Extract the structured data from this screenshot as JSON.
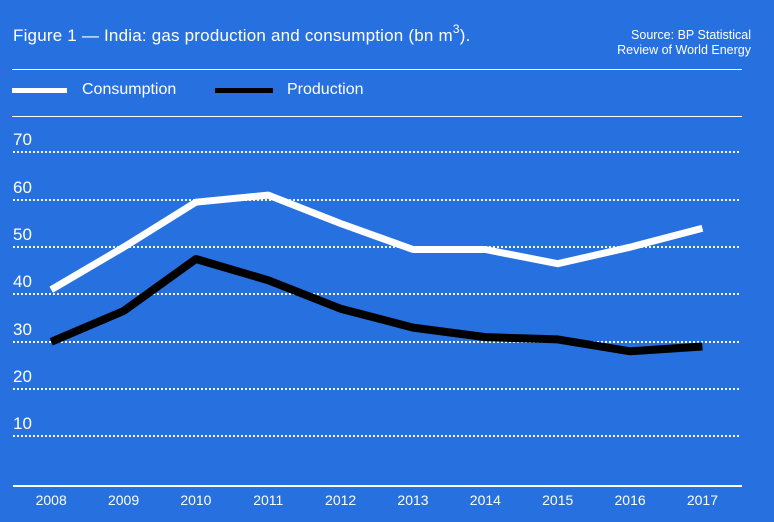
{
  "colors": {
    "background": "#2671DF",
    "text": "#FFFFFF",
    "consumption_line": "#FFFFFF",
    "production_line": "#000000"
  },
  "header": {
    "title_prefix": "Figure 1 — India: gas production and consumption (bn m",
    "title_sup": "3",
    "title_suffix": ").",
    "source_line1": "Source: BP Statistical",
    "source_line2": "Review of World Energy"
  },
  "legend": {
    "items": [
      {
        "label": "Consumption",
        "color": "#FFFFFF"
      },
      {
        "label": "Production",
        "color": "#000000"
      }
    ]
  },
  "chart_data": {
    "type": "line",
    "title": "Figure 1 — India: gas production and consumption (bn m3).",
    "source": "Source: BP Statistical Review of World Energy",
    "x": [
      2008,
      2009,
      2010,
      2011,
      2012,
      2013,
      2014,
      2015,
      2016,
      2017
    ],
    "series": [
      {
        "name": "Consumption",
        "color": "#FFFFFF",
        "values": [
          41,
          50,
          59.5,
          61,
          55,
          49.5,
          49.5,
          46.5,
          50,
          54
        ]
      },
      {
        "name": "Production",
        "color": "#000000",
        "values": [
          30,
          36.5,
          47.5,
          43,
          37,
          33,
          31,
          30.5,
          28,
          29
        ]
      }
    ],
    "ylabel": "",
    "xlabel": "",
    "ylim": [
      0,
      75
    ],
    "yticks": [
      70,
      60,
      50,
      40,
      30,
      20,
      10
    ],
    "grid": "horizontal-dotted",
    "legend_position": "top-left"
  }
}
